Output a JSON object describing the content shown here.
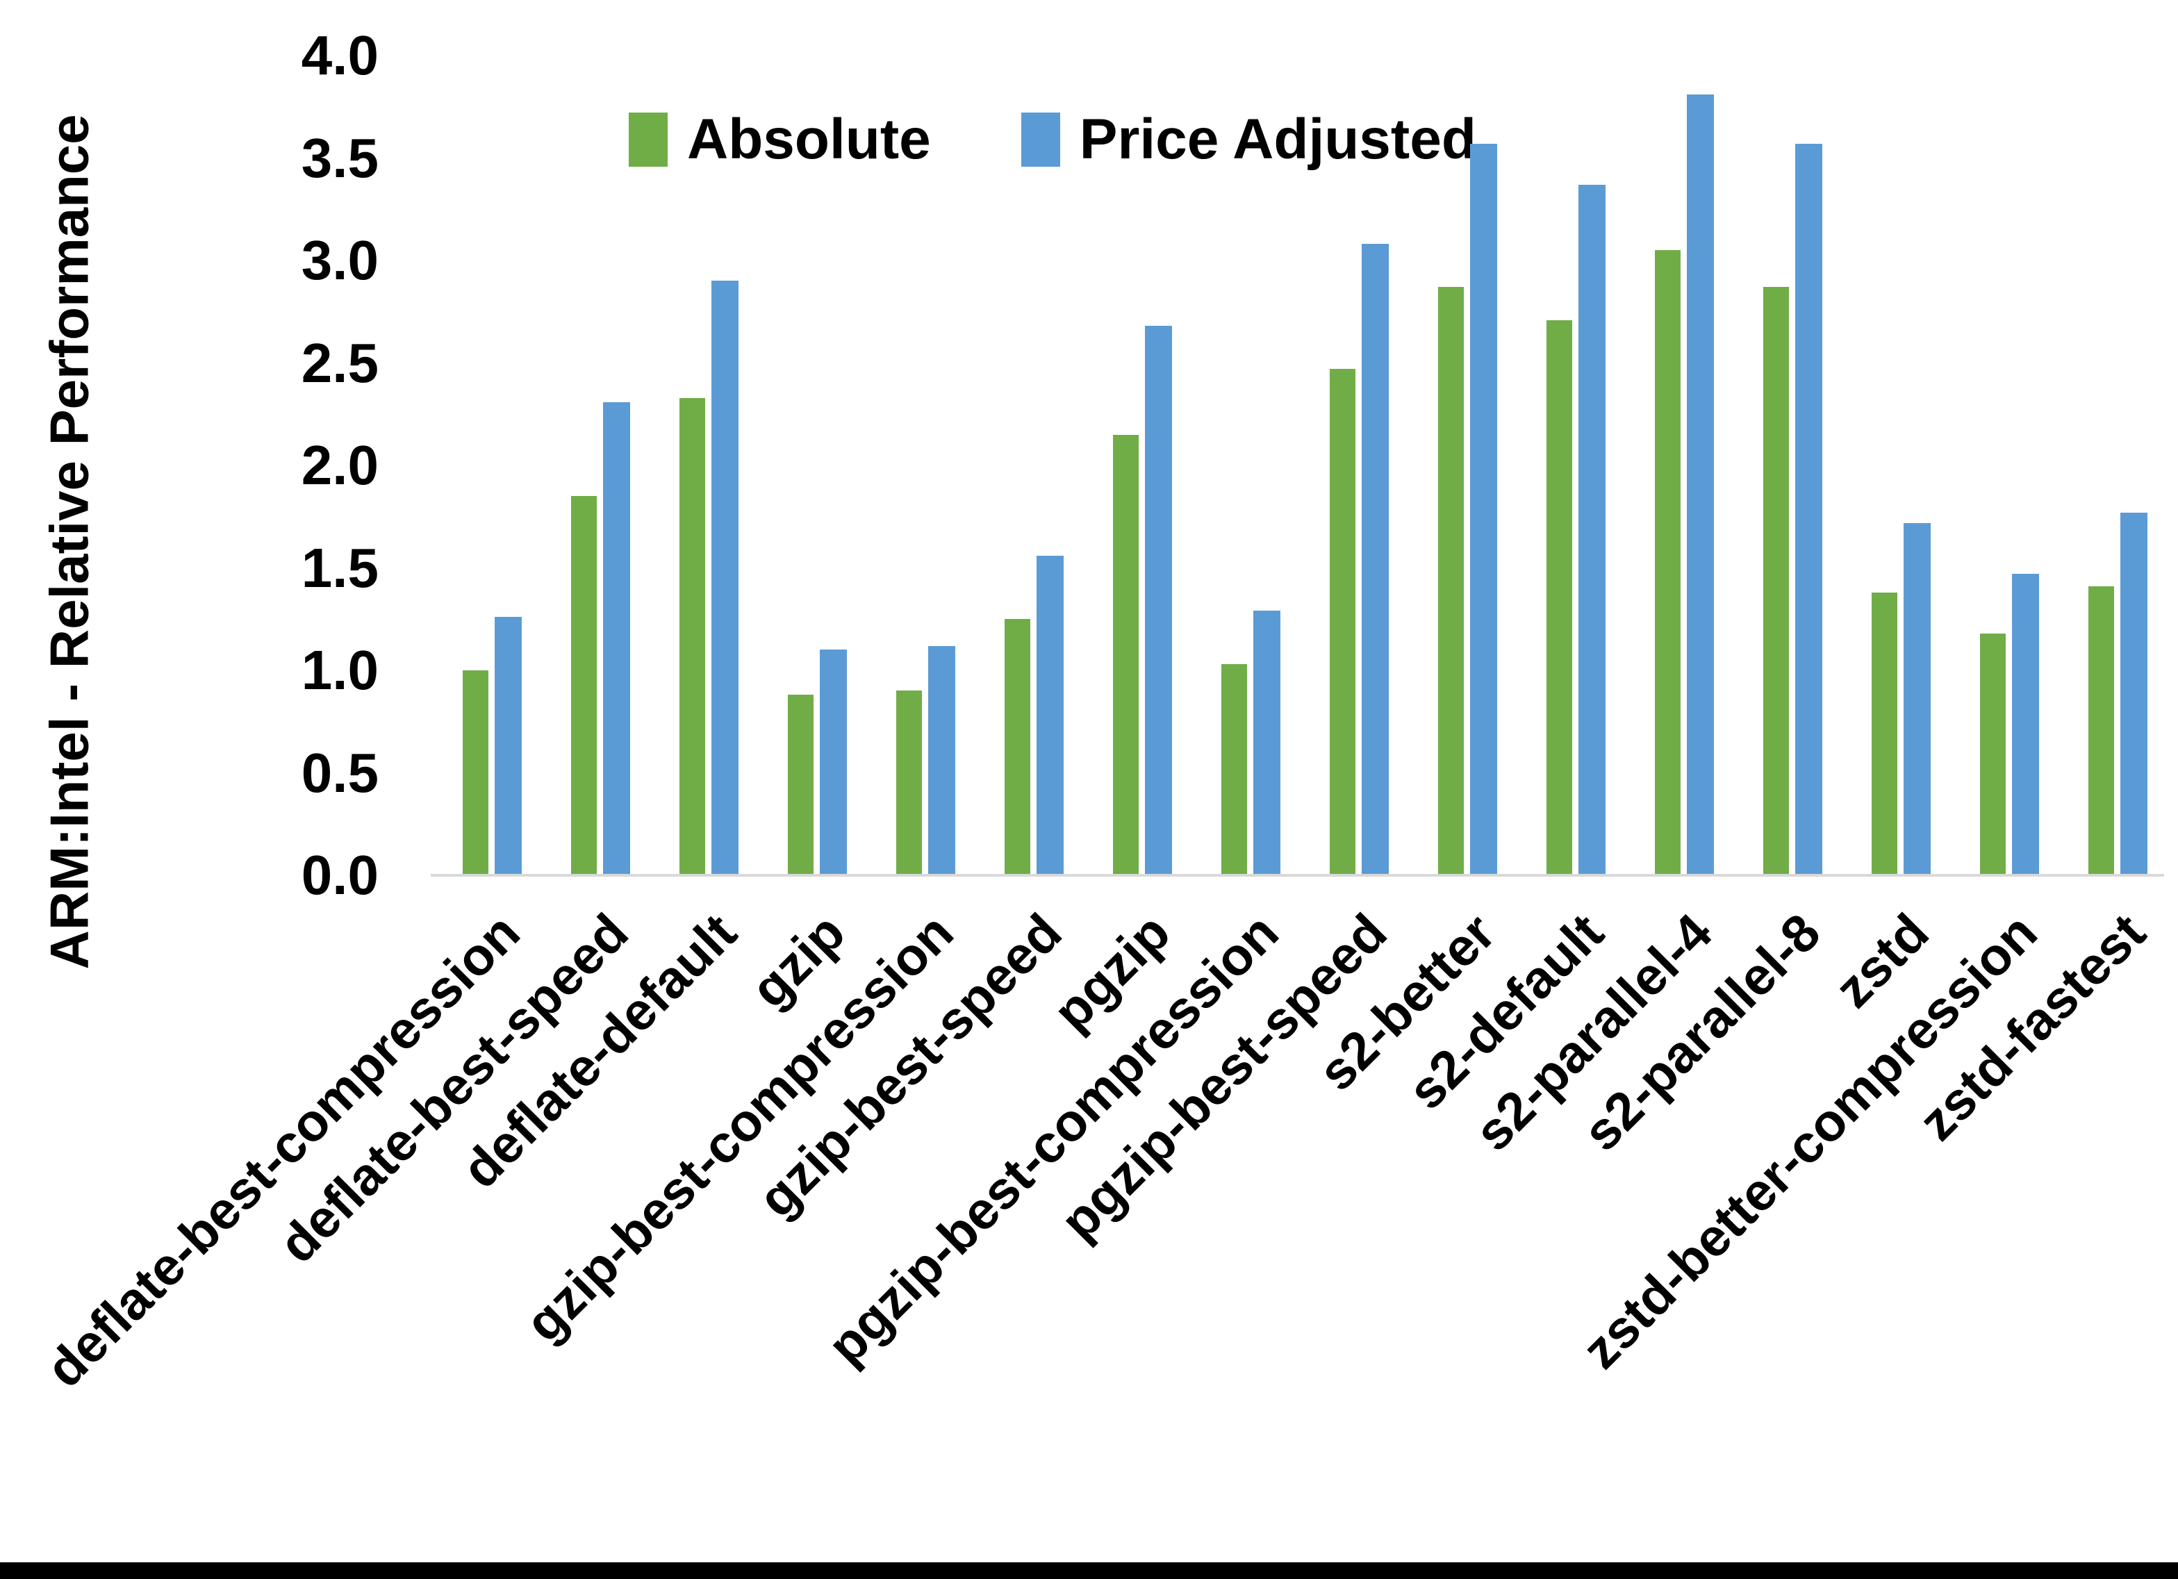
{
  "chart_data": {
    "type": "bar",
    "title": "",
    "xlabel": "",
    "ylabel": "ARM:Intel - Relative Performance",
    "ylim": [
      0.0,
      4.0
    ],
    "ytick_step": 0.5,
    "ytick_labels": [
      "0.0",
      "0.5",
      "1.0",
      "1.5",
      "2.0",
      "2.5",
      "3.0",
      "3.5",
      "4.0"
    ],
    "grid": false,
    "legend_position": "top-center",
    "categories": [
      "deflate-best-compression",
      "deflate-best-speed",
      "deflate-default",
      "gzip",
      "gzip-best-compression",
      "gzip-best-speed",
      "pgzip",
      "pgzip-best-compression",
      "pgzip-best-speed",
      "s2-better",
      "s2-default",
      "s2-parallel-4",
      "s2-parallel-8",
      "zstd",
      "zstd-better-compression",
      "zstd-fastest"
    ],
    "series": [
      {
        "name": "Absolute",
        "color": "#70AD47",
        "values": [
          1.0,
          1.85,
          2.33,
          0.88,
          0.9,
          1.25,
          2.15,
          1.03,
          2.47,
          2.87,
          2.71,
          3.05,
          2.87,
          1.38,
          1.18,
          1.41
        ]
      },
      {
        "name": "Price Adjusted",
        "color": "#5B9BD5",
        "values": [
          1.26,
          2.31,
          2.9,
          1.1,
          1.12,
          1.56,
          2.68,
          1.29,
          3.08,
          3.57,
          3.37,
          3.81,
          3.57,
          1.72,
          1.47,
          1.77
        ]
      }
    ],
    "axis_line_color": "#D9D9D9",
    "text_color": "#000000"
  }
}
